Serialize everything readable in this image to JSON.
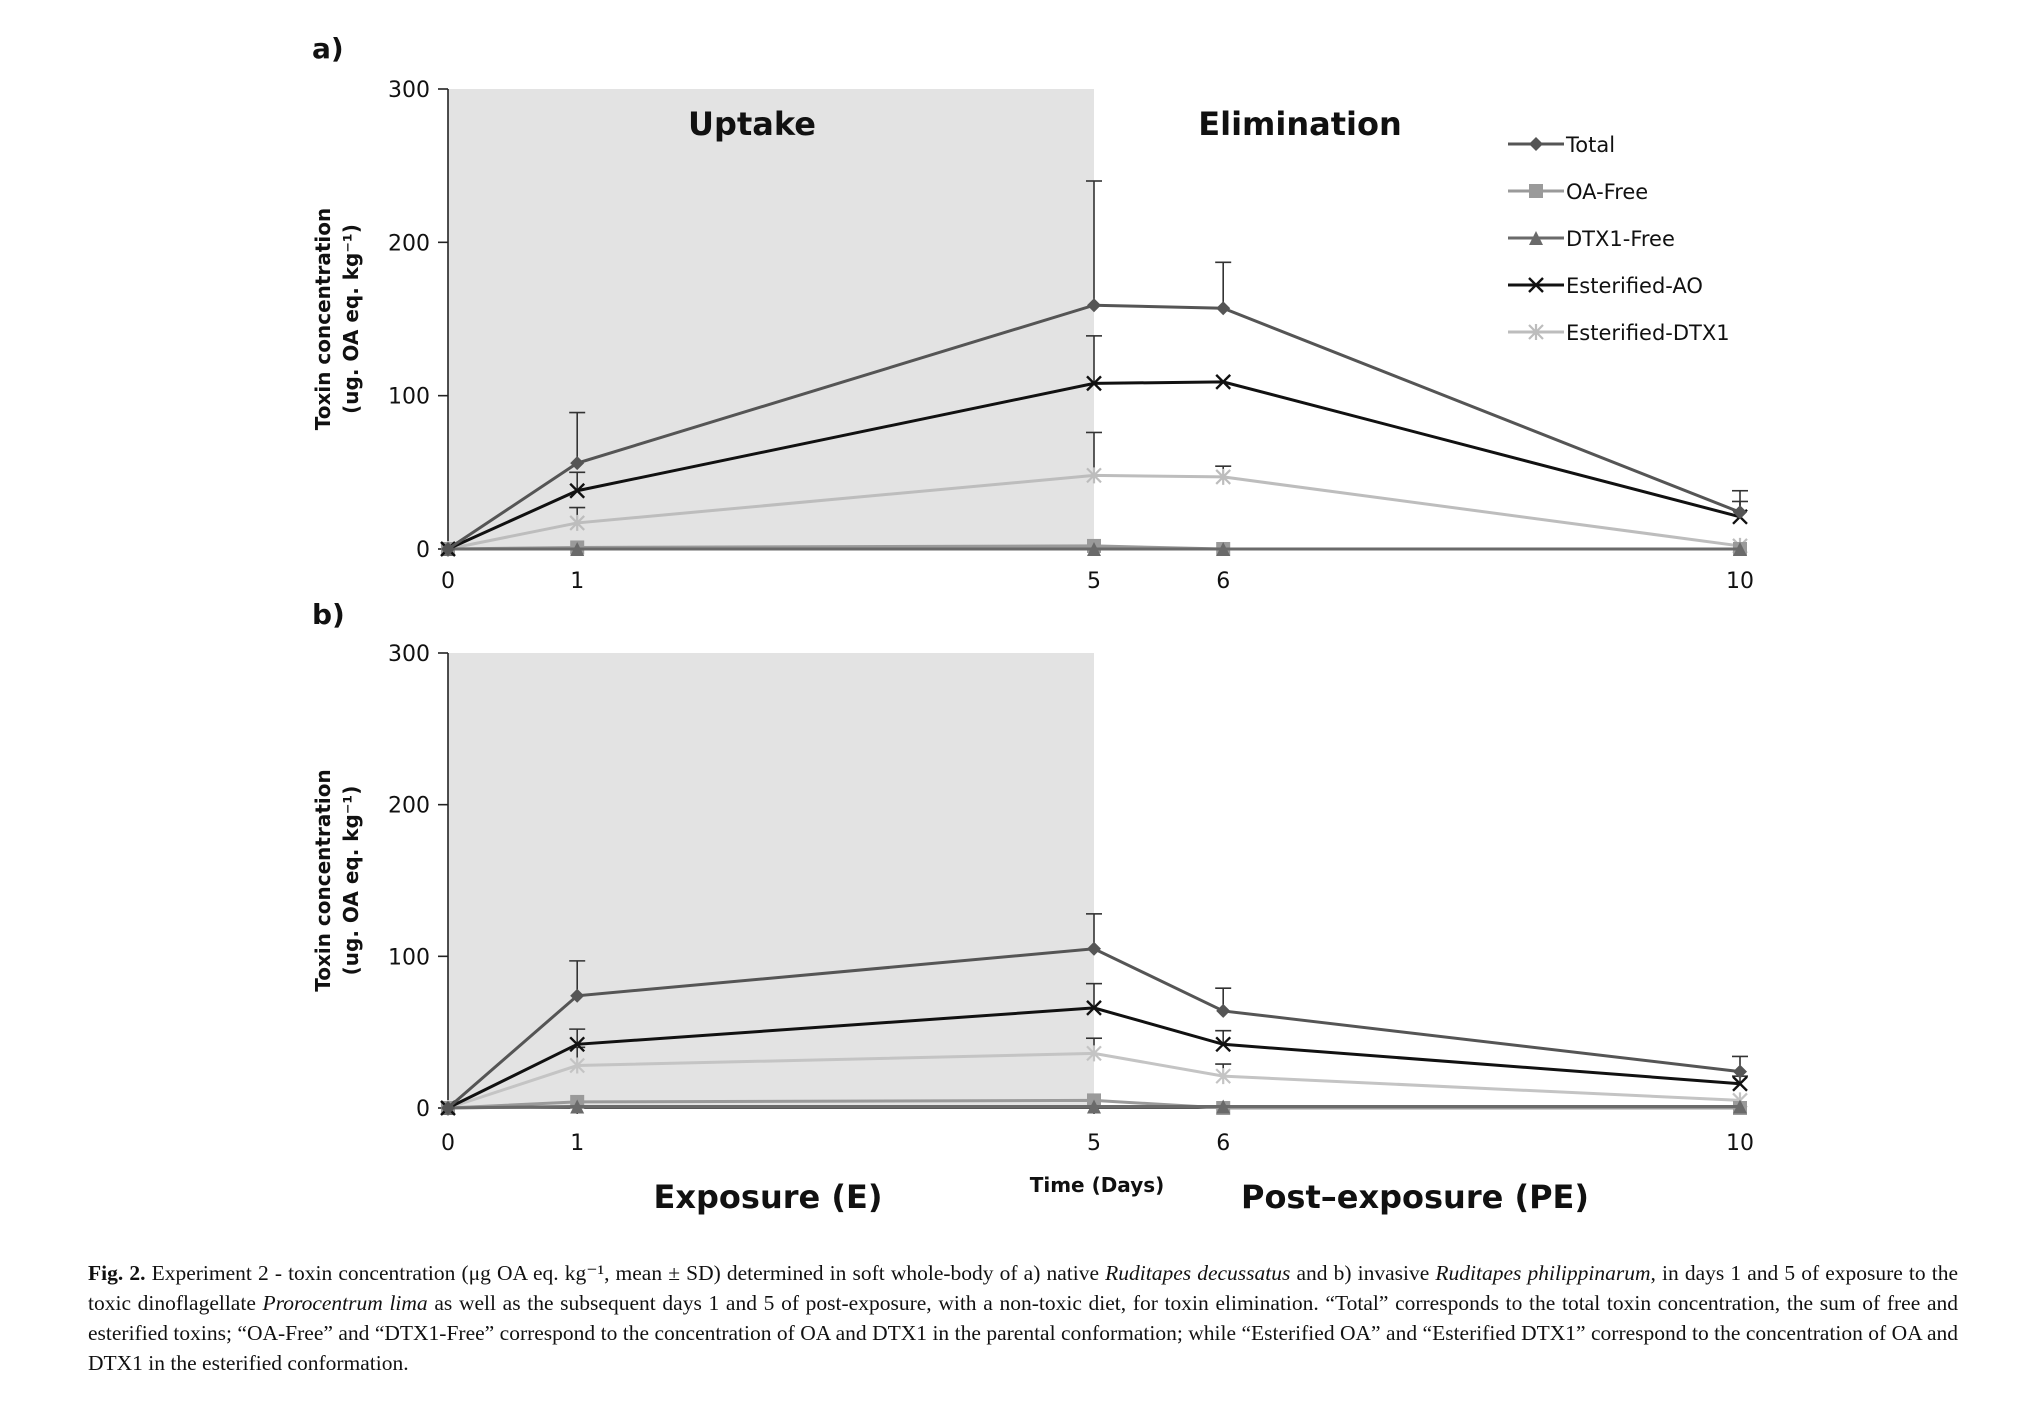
{
  "chart_data": [
    {
      "type": "line",
      "panel_label": "a)",
      "x": [
        0,
        1,
        5,
        6,
        10
      ],
      "xticks": [
        "0",
        "1",
        "5",
        "6",
        "10"
      ],
      "ylim": [
        0,
        300
      ],
      "yticks": [
        "0",
        "100",
        "200",
        "300"
      ],
      "ylabel_line1": "Toxin concentration",
      "ylabel_line2": "(ug. OA eq. kg⁻¹)",
      "shaded_region_x": [
        0,
        5
      ],
      "phase_labels": {
        "left": "Uptake",
        "right": "Elimination"
      },
      "legend_position": "top-right",
      "legend": [
        "Total",
        "OA-Free",
        "DTX1-Free",
        "Esterified-AO",
        "Esterified-DTX1"
      ],
      "series": [
        {
          "name": "Total",
          "values": [
            0,
            56,
            159,
            157,
            24
          ],
          "error": [
            0,
            33,
            81,
            30,
            14
          ],
          "color": "#555555",
          "marker": "diamond"
        },
        {
          "name": "OA-Free",
          "values": [
            0,
            1,
            2,
            0,
            0
          ],
          "error": [
            0,
            0,
            0,
            0,
            0
          ],
          "color": "#9a9a9a",
          "marker": "square"
        },
        {
          "name": "DTX1-Free",
          "values": [
            0,
            0,
            0,
            0,
            0
          ],
          "error": [
            0,
            0,
            0,
            0,
            0
          ],
          "color": "#6a6a6a",
          "marker": "triangle"
        },
        {
          "name": "Esterified-AO",
          "values": [
            0,
            38,
            108,
            109,
            21
          ],
          "error": [
            0,
            12,
            31,
            0,
            10
          ],
          "color": "#111111",
          "marker": "x"
        },
        {
          "name": "Esterified-DTX1",
          "values": [
            0,
            17,
            48,
            47,
            2
          ],
          "error": [
            0,
            10,
            28,
            7,
            0
          ],
          "color": "#bdbdbd",
          "marker": "star"
        }
      ]
    },
    {
      "type": "line",
      "panel_label": "b)",
      "x": [
        0,
        1,
        5,
        6,
        10
      ],
      "xticks": [
        "0",
        "1",
        "5",
        "6",
        "10"
      ],
      "ylim": [
        0,
        300
      ],
      "yticks": [
        "0",
        "100",
        "200",
        "300"
      ],
      "ylabel_line1": "Toxin concentration",
      "ylabel_line2": "(ug. OA eq. kg⁻¹)",
      "xlabel": "Time (Days)",
      "shaded_region_x": [
        0,
        5
      ],
      "series": [
        {
          "name": "Total",
          "values": [
            0,
            74,
            105,
            64,
            24
          ],
          "error": [
            0,
            23,
            23,
            15,
            10
          ],
          "color": "#555555",
          "marker": "diamond"
        },
        {
          "name": "OA-Free",
          "values": [
            0,
            4,
            5,
            0,
            0
          ],
          "error": [
            0,
            0,
            0,
            0,
            0
          ],
          "color": "#9a9a9a",
          "marker": "square"
        },
        {
          "name": "DTX1-Free",
          "values": [
            0,
            1,
            1,
            1,
            1
          ],
          "error": [
            0,
            0,
            0,
            0,
            0
          ],
          "color": "#6a6a6a",
          "marker": "triangle"
        },
        {
          "name": "Esterified-AO",
          "values": [
            0,
            42,
            66,
            42,
            16
          ],
          "error": [
            0,
            10,
            16,
            9,
            5
          ],
          "color": "#111111",
          "marker": "x"
        },
        {
          "name": "Esterified-DTX1",
          "values": [
            0,
            28,
            36,
            21,
            5
          ],
          "error": [
            0,
            12,
            10,
            8,
            0
          ],
          "color": "#c4c4c4",
          "marker": "star"
        }
      ]
    }
  ],
  "phases": {
    "exposure": "Exposure (E)",
    "post_exposure": "Post–exposure (PE)"
  },
  "caption": {
    "label": "Fig. 2.",
    "text": " Experiment 2 - toxin concentration (μg OA eq. kg⁻¹, mean ± SD) determined in soft whole-body of a) native Ruditapes decussatus and b) invasive Ruditapes philippinarum, in days 1 and 5 of exposure to the toxic dinoflagellate Prorocentrum lima as well as the subsequent days 1 and 5 of post-exposure, with a non-toxic diet, for toxin elimination. “Total” corresponds to the total toxin concentration, the sum of free and esterified toxins; “OA-Free” and “DTX1-Free” correspond to the concentration of OA and DTX1 in the parental conformation; while “Esterified OA” and “Esterified DTX1” correspond to the concentration of OA and DTX1 in the esterified conformation."
  }
}
